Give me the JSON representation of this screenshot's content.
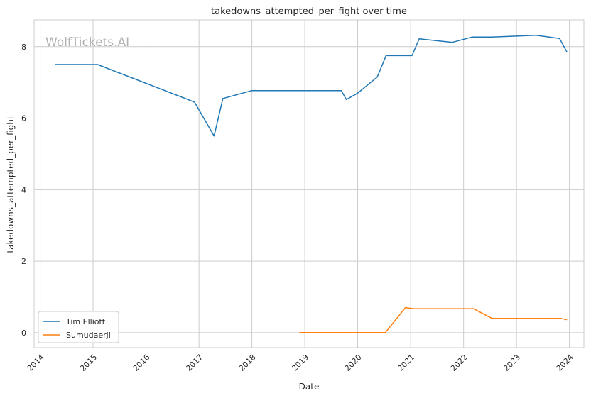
{
  "watermark": "WolfTickets.AI",
  "chart_data": {
    "type": "line",
    "title": "takedowns_attempted_per_fight over time",
    "xlabel": "Date",
    "ylabel": "takedowns_attempted_per_fight",
    "xlim": [
      "2013-11-20",
      "2024-04-10"
    ],
    "ylim": [
      -0.42,
      8.75
    ],
    "x_ticks": [
      "2014",
      "2015",
      "2016",
      "2017",
      "2018",
      "2019",
      "2020",
      "2021",
      "2022",
      "2023",
      "2024"
    ],
    "y_ticks": [
      0,
      2,
      4,
      6,
      8
    ],
    "grid": true,
    "legend_position": "lower-left",
    "series": [
      {
        "name": "Tim Elliott",
        "color": "#1f77b4",
        "points": [
          [
            "2014-04-15",
            7.5
          ],
          [
            "2015-02-01",
            7.5
          ],
          [
            "2016-12-01",
            6.45
          ],
          [
            "2017-04-15",
            5.5
          ],
          [
            "2017-06-15",
            6.55
          ],
          [
            "2017-12-30",
            6.77
          ],
          [
            "2019-09-10",
            6.77
          ],
          [
            "2019-10-15",
            6.52
          ],
          [
            "2020-01-01",
            6.7
          ],
          [
            "2020-05-15",
            7.15
          ],
          [
            "2020-07-15",
            7.75
          ],
          [
            "2021-01-10",
            7.75
          ],
          [
            "2021-03-01",
            8.22
          ],
          [
            "2021-10-15",
            8.12
          ],
          [
            "2022-03-01",
            8.27
          ],
          [
            "2022-07-15",
            8.27
          ],
          [
            "2023-05-15",
            8.32
          ],
          [
            "2023-10-25",
            8.23
          ],
          [
            "2023-12-15",
            7.85
          ]
        ]
      },
      {
        "name": "Sumudaerji",
        "color": "#ff7f0e",
        "points": [
          [
            "2018-11-24",
            0.0
          ],
          [
            "2020-07-10",
            0.0
          ],
          [
            "2020-11-25",
            0.7
          ],
          [
            "2021-01-20",
            0.67
          ],
          [
            "2022-03-10",
            0.67
          ],
          [
            "2022-07-15",
            0.4
          ],
          [
            "2023-11-01",
            0.4
          ],
          [
            "2023-12-15",
            0.36
          ]
        ]
      }
    ]
  }
}
